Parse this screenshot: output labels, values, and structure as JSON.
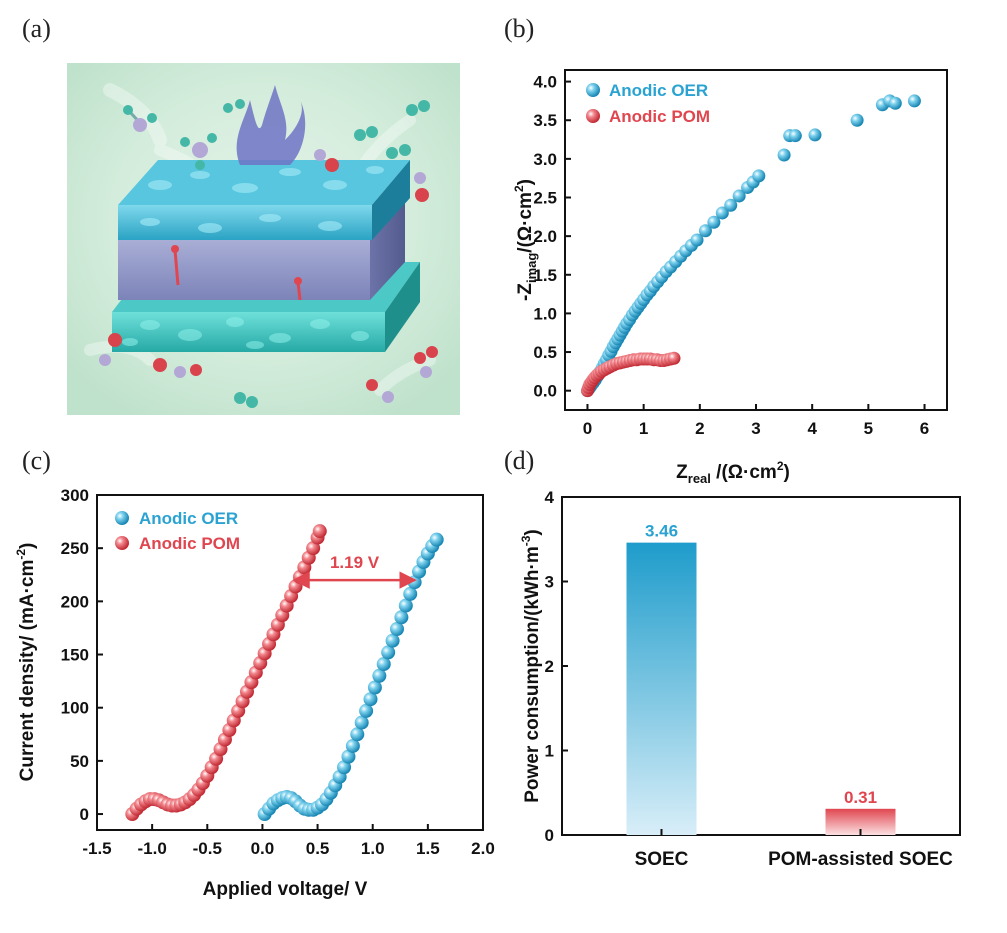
{
  "panels": {
    "a": "(a)",
    "b": "(b)",
    "c": "(c)",
    "d": "(d)"
  },
  "colors": {
    "oer": "#2aa3d2",
    "pom": "#e0464f",
    "axis": "#111111"
  },
  "chart_data": [
    {
      "id": "b",
      "type": "scatter",
      "xlabel": "Z_real /(Ω·cm²)",
      "ylabel": "-Z_imag /(Ω·cm²)",
      "xlim": [
        -0.4,
        6.4
      ],
      "ylim": [
        -0.25,
        4.15
      ],
      "xticks": [
        "0",
        "1",
        "2",
        "3",
        "4",
        "5",
        "6"
      ],
      "yticks": [
        "0.0",
        "0.5",
        "1.0",
        "1.5",
        "2.0",
        "2.5",
        "3.0",
        "3.5",
        "4.0"
      ],
      "legend": [
        "Anodic OER",
        "Anodic POM"
      ],
      "legend_position": "top-left",
      "series": [
        {
          "name": "Anodic OER",
          "color": "#2aa3d2",
          "x": [
            0.0,
            0.03,
            0.06,
            0.1,
            0.14,
            0.18,
            0.22,
            0.26,
            0.3,
            0.34,
            0.38,
            0.42,
            0.46,
            0.5,
            0.54,
            0.58,
            0.62,
            0.66,
            0.7,
            0.75,
            0.8,
            0.85,
            0.9,
            0.95,
            1.0,
            1.06,
            1.12,
            1.18,
            1.25,
            1.32,
            1.4,
            1.48,
            1.57,
            1.66,
            1.75,
            1.85,
            1.95,
            2.1,
            2.25,
            2.4,
            2.55,
            2.7,
            2.85,
            2.95,
            3.05,
            3.5,
            3.6,
            3.7,
            4.05,
            4.8,
            5.25,
            5.38,
            5.48,
            5.82
          ],
          "y": [
            0.0,
            0.03,
            0.06,
            0.1,
            0.14,
            0.19,
            0.24,
            0.29,
            0.35,
            0.4,
            0.46,
            0.51,
            0.57,
            0.62,
            0.67,
            0.72,
            0.77,
            0.82,
            0.87,
            0.92,
            0.98,
            1.03,
            1.08,
            1.13,
            1.18,
            1.24,
            1.29,
            1.35,
            1.41,
            1.47,
            1.54,
            1.6,
            1.67,
            1.74,
            1.81,
            1.88,
            1.95,
            2.07,
            2.18,
            2.3,
            2.4,
            2.52,
            2.63,
            2.7,
            2.78,
            3.05,
            3.3,
            3.3,
            3.31,
            3.5,
            3.7,
            3.75,
            3.72,
            3.75
          ]
        },
        {
          "name": "Anodic POM",
          "color": "#e0464f",
          "x": [
            0.0,
            0.02,
            0.04,
            0.07,
            0.1,
            0.13,
            0.17,
            0.21,
            0.25,
            0.3,
            0.35,
            0.4,
            0.46,
            0.52,
            0.58,
            0.64,
            0.7,
            0.76,
            0.82,
            0.88,
            0.94,
            1.0,
            1.06,
            1.12,
            1.18,
            1.24,
            1.3,
            1.36,
            1.42,
            1.48,
            1.54
          ],
          "y": [
            0.0,
            0.04,
            0.08,
            0.11,
            0.14,
            0.17,
            0.2,
            0.22,
            0.25,
            0.27,
            0.29,
            0.31,
            0.33,
            0.35,
            0.36,
            0.37,
            0.38,
            0.39,
            0.4,
            0.4,
            0.41,
            0.41,
            0.41,
            0.41,
            0.4,
            0.4,
            0.39,
            0.39,
            0.4,
            0.41,
            0.42
          ]
        }
      ]
    },
    {
      "id": "c",
      "type": "scatter",
      "xlabel": "Applied voltage/ V",
      "ylabel": "Current density/ (mA·cm⁻²)",
      "xlim": [
        -1.5,
        2.0
      ],
      "ylim": [
        -15,
        300
      ],
      "xticks": [
        "-1.5",
        "-1.0",
        "-0.5",
        "0.0",
        "0.5",
        "1.0",
        "1.5",
        "2.0"
      ],
      "yticks": [
        "0",
        "50",
        "100",
        "150",
        "200",
        "250",
        "300"
      ],
      "legend": [
        "Anodic OER",
        "Anodic POM"
      ],
      "legend_position": "top-left",
      "annotation": "1.19 V",
      "annotation_y": 220,
      "annotation_x": [
        0.25,
        1.42
      ],
      "series": [
        {
          "name": "Anodic OER",
          "color": "#2aa3d2",
          "x": [
            0.02,
            0.06,
            0.1,
            0.14,
            0.18,
            0.22,
            0.26,
            0.3,
            0.34,
            0.38,
            0.42,
            0.46,
            0.5,
            0.54,
            0.58,
            0.62,
            0.66,
            0.7,
            0.74,
            0.78,
            0.82,
            0.86,
            0.9,
            0.94,
            0.98,
            1.02,
            1.06,
            1.1,
            1.14,
            1.18,
            1.22,
            1.26,
            1.3,
            1.34,
            1.38,
            1.42,
            1.46,
            1.5,
            1.54,
            1.58
          ],
          "y": [
            0,
            5,
            10,
            13,
            15,
            16,
            15,
            12,
            8,
            5,
            4,
            4,
            6,
            9,
            14,
            20,
            27,
            35,
            44,
            54,
            64,
            75,
            86,
            97,
            108,
            119,
            130,
            141,
            152,
            163,
            174,
            185,
            196,
            207,
            218,
            228,
            237,
            245,
            252,
            258
          ]
        },
        {
          "name": "Anodic POM",
          "color": "#e0464f",
          "x": [
            -1.18,
            -1.14,
            -1.1,
            -1.06,
            -1.02,
            -0.98,
            -0.94,
            -0.9,
            -0.86,
            -0.82,
            -0.78,
            -0.74,
            -0.7,
            -0.66,
            -0.62,
            -0.58,
            -0.54,
            -0.5,
            -0.46,
            -0.42,
            -0.38,
            -0.34,
            -0.3,
            -0.26,
            -0.22,
            -0.18,
            -0.14,
            -0.1,
            -0.06,
            -0.02,
            0.02,
            0.06,
            0.1,
            0.14,
            0.18,
            0.22,
            0.26,
            0.3,
            0.34,
            0.38,
            0.42,
            0.46,
            0.5,
            0.52
          ],
          "y": [
            0,
            5,
            9,
            12,
            14,
            14,
            13,
            11,
            9,
            8,
            8,
            9,
            11,
            14,
            18,
            23,
            29,
            36,
            44,
            52,
            61,
            70,
            79,
            88,
            97,
            106,
            115,
            124,
            133,
            142,
            151,
            160,
            169,
            178,
            187,
            196,
            205,
            214,
            223,
            232,
            241,
            250,
            260,
            266
          ]
        }
      ]
    },
    {
      "id": "d",
      "type": "bar",
      "ylabel": "Power consumption/(kWh·m⁻³)",
      "ylim": [
        0,
        4
      ],
      "yticks": [
        "0",
        "1",
        "2",
        "3",
        "4"
      ],
      "categories": [
        "SOEC",
        "POM-assisted SOEC"
      ],
      "values": [
        3.46,
        0.31
      ],
      "value_labels": [
        "3.46",
        "0.31"
      ],
      "colors": [
        "#2aa3d2",
        "#e0464f"
      ]
    }
  ]
}
